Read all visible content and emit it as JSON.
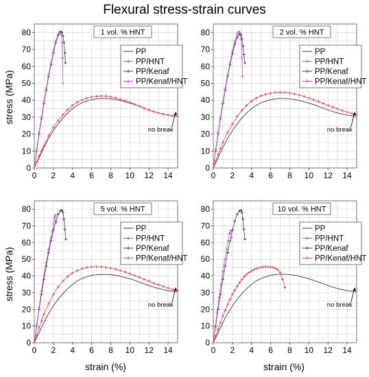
{
  "figure_title": "Flexural stress-strain curves",
  "axis_titles": {
    "y": "stress (MPa)",
    "x": "strain (%)"
  },
  "colors": {
    "PP": "#3a3a3a",
    "PP/HNT": "#e8424a",
    "PP/Kenaf": "#3a3a3a",
    "PP/Kenaf/HNT": "#c24fd2"
  },
  "chart_data": [
    {
      "type": "line",
      "panel_label": "1 vol. % HNT",
      "annotation": "no break",
      "xlim": [
        0,
        15
      ],
      "ylim": [
        0,
        85
      ],
      "x_ticks": [
        0,
        2,
        4,
        6,
        8,
        10,
        12,
        14
      ],
      "y_ticks": [
        0,
        10,
        20,
        30,
        40,
        50,
        60,
        70,
        80
      ],
      "grid": true,
      "legend_position": "right",
      "series": [
        {
          "name": "PP",
          "marker": "none",
          "x": [
            0,
            0.25,
            0.5,
            0.75,
            1,
            1.5,
            2,
            2.5,
            3,
            3.5,
            4,
            4.5,
            5,
            5.5,
            6,
            6.5,
            7,
            7.5,
            8,
            8.5,
            9,
            9.5,
            10,
            10.5,
            11,
            11.5,
            12,
            12.5,
            13,
            13.5,
            14,
            14.5,
            15
          ],
          "y": [
            0,
            3,
            6,
            9,
            12,
            17.5,
            22,
            26,
            29.5,
            32.5,
            35,
            37,
            38.5,
            39.5,
            40.3,
            40.8,
            41,
            41,
            40.8,
            40.4,
            39.8,
            39.1,
            38.3,
            37.4,
            36.4,
            35.3,
            34.2,
            33.3,
            32.5,
            31.8,
            31.2,
            30.8,
            30.5
          ]
        },
        {
          "name": "PP/HNT",
          "marker": "plus",
          "x": [
            0,
            0.25,
            0.5,
            0.75,
            1,
            1.5,
            2,
            2.5,
            3,
            3.5,
            4,
            4.5,
            5,
            5.5,
            6,
            6.5,
            7,
            7.5,
            8,
            8.5,
            9,
            9.5,
            10,
            10.5,
            11,
            11.5,
            12,
            12.5,
            13,
            13.5,
            14,
            14.5,
            15
          ],
          "y": [
            0,
            3.5,
            7,
            10,
            13,
            19,
            24,
            28,
            31.5,
            34.5,
            37,
            38.8,
            40.2,
            41.2,
            41.9,
            42.3,
            42.5,
            42.4,
            42,
            41.4,
            40.6,
            39.7,
            38.7,
            37.6,
            36.5,
            35.3,
            34.2,
            33.3,
            32.5,
            31.8,
            31.2,
            30.8,
            30.5
          ]
        },
        {
          "name": "PP/Kenaf",
          "marker": "plus",
          "x": [
            0,
            0.25,
            0.5,
            0.75,
            1,
            1.25,
            1.5,
            1.75,
            2,
            2.25,
            2.5,
            2.75,
            2.9,
            3.0,
            3.1,
            3.2,
            3.25
          ],
          "y": [
            0,
            10,
            20,
            29,
            38,
            46,
            54,
            61,
            68,
            74,
            78.5,
            80.5,
            80,
            78,
            74,
            68,
            62
          ]
        },
        {
          "name": "PP/Kenaf/HNT",
          "marker": "plus",
          "x": [
            0,
            0.25,
            0.5,
            0.75,
            1,
            1.25,
            1.5,
            1.75,
            2,
            2.25,
            2.5,
            2.65,
            2.8,
            2.9,
            2.95,
            3.0
          ],
          "y": [
            0,
            11,
            21,
            30,
            39,
            47,
            55,
            62,
            69,
            75,
            79,
            80.5,
            79,
            74,
            65,
            50
          ]
        }
      ]
    },
    {
      "type": "line",
      "panel_label": "2 vol. % HNT",
      "annotation": "no break",
      "xlim": [
        0,
        15
      ],
      "ylim": [
        0,
        85
      ],
      "x_ticks": [
        0,
        2,
        4,
        6,
        8,
        10,
        12,
        14
      ],
      "y_ticks": [
        0,
        10,
        20,
        30,
        40,
        50,
        60,
        70,
        80
      ],
      "grid": true,
      "legend_position": "right",
      "series": [
        {
          "name": "PP",
          "marker": "none",
          "x": [
            0,
            0.25,
            0.5,
            0.75,
            1,
            1.5,
            2,
            2.5,
            3,
            3.5,
            4,
            4.5,
            5,
            5.5,
            6,
            6.5,
            7,
            7.5,
            8,
            8.5,
            9,
            9.5,
            10,
            10.5,
            11,
            11.5,
            12,
            12.5,
            13,
            13.5,
            14,
            14.5,
            15
          ],
          "y": [
            0,
            3,
            6,
            9,
            12,
            17.5,
            22,
            26,
            29.5,
            32.5,
            35,
            37,
            38.5,
            39.5,
            40.3,
            40.8,
            41,
            41,
            40.8,
            40.4,
            39.8,
            39.1,
            38.3,
            37.4,
            36.4,
            35.3,
            34.2,
            33.3,
            32.5,
            31.8,
            31.2,
            30.8,
            30.5
          ]
        },
        {
          "name": "PP/HNT",
          "marker": "plus",
          "x": [
            0,
            0.25,
            0.5,
            0.75,
            1,
            1.5,
            2,
            2.5,
            3,
            3.5,
            4,
            4.5,
            5,
            5.5,
            6,
            6.5,
            7,
            7.5,
            8,
            8.5,
            9,
            9.5,
            10,
            10.5,
            11,
            11.5,
            12,
            12.5,
            13,
            13.5,
            14,
            14.5,
            15
          ],
          "y": [
            0,
            4,
            8,
            11.5,
            15,
            21,
            26,
            30.5,
            34,
            37,
            39.5,
            41.3,
            42.6,
            43.5,
            44.1,
            44.5,
            44.6,
            44.5,
            44.2,
            43.7,
            43,
            42.2,
            41.3,
            40.3,
            39.2,
            38.1,
            37,
            35.9,
            34.9,
            33.9,
            33,
            32.2,
            31.5
          ]
        },
        {
          "name": "PP/Kenaf",
          "marker": "plus",
          "x": [
            0,
            0.25,
            0.5,
            0.75,
            1,
            1.25,
            1.5,
            1.75,
            2,
            2.25,
            2.5,
            2.75,
            2.9,
            3.0,
            3.1,
            3.2,
            3.3
          ],
          "y": [
            0,
            10,
            20,
            29,
            38,
            46,
            54,
            61,
            67.5,
            73,
            77,
            79,
            78.5,
            76,
            72,
            67,
            62
          ]
        },
        {
          "name": "PP/Kenaf/HNT",
          "marker": "plus",
          "x": [
            0,
            0.25,
            0.5,
            0.75,
            1,
            1.25,
            1.5,
            1.75,
            2,
            2.25,
            2.5,
            2.65,
            2.8,
            2.9,
            3.0,
            3.05
          ],
          "y": [
            0,
            11,
            21,
            30,
            39,
            47,
            55,
            62,
            69,
            75,
            79,
            80.5,
            79.5,
            76,
            65,
            54
          ]
        }
      ]
    },
    {
      "type": "line",
      "panel_label": "5 vol. % HNT",
      "annotation": "no break",
      "xlim": [
        0,
        15
      ],
      "ylim": [
        0,
        85
      ],
      "x_ticks": [
        0,
        2,
        4,
        6,
        8,
        10,
        12,
        14
      ],
      "y_ticks": [
        0,
        10,
        20,
        30,
        40,
        50,
        60,
        70,
        80
      ],
      "grid": true,
      "legend_position": "right",
      "series": [
        {
          "name": "PP",
          "marker": "none",
          "x": [
            0,
            0.25,
            0.5,
            0.75,
            1,
            1.5,
            2,
            2.5,
            3,
            3.5,
            4,
            4.5,
            5,
            5.5,
            6,
            6.5,
            7,
            7.5,
            8,
            8.5,
            9,
            9.5,
            10,
            10.5,
            11,
            11.5,
            12,
            12.5,
            13,
            13.5,
            14,
            14.5,
            15
          ],
          "y": [
            0,
            3,
            6,
            9,
            12,
            17.5,
            22,
            26,
            29.5,
            32.5,
            35,
            37,
            38.5,
            39.5,
            40.3,
            40.8,
            41,
            41,
            40.8,
            40.4,
            39.8,
            39.1,
            38.3,
            37.4,
            36.4,
            35.3,
            34.2,
            33.3,
            32.5,
            31.8,
            31.2,
            30.8,
            30.5
          ]
        },
        {
          "name": "PP/HNT",
          "marker": "plus",
          "x": [
            0,
            0.25,
            0.5,
            0.75,
            1,
            1.5,
            2,
            2.5,
            3,
            3.5,
            4,
            4.5,
            5,
            5.5,
            6,
            6.5,
            7,
            7.5,
            8,
            8.5,
            9,
            9.5,
            10,
            10.5,
            11,
            11.5,
            12,
            12.5,
            13,
            13.5,
            14,
            14.5,
            15
          ],
          "y": [
            0,
            4.5,
            9,
            13,
            17,
            23.5,
            29,
            33.5,
            37,
            39.8,
            41.8,
            43.3,
            44.4,
            45.1,
            45.5,
            45.6,
            45.5,
            45.2,
            44.7,
            44.1,
            43.3,
            42.4,
            41.4,
            40.3,
            39.2,
            38,
            36.8,
            35.7,
            34.7,
            33.7,
            32.8,
            32,
            31.3
          ]
        },
        {
          "name": "PP/Kenaf",
          "marker": "plus",
          "x": [
            0,
            0.25,
            0.5,
            0.75,
            1,
            1.25,
            1.5,
            1.75,
            2,
            2.25,
            2.5,
            2.75,
            2.9,
            3.0,
            3.1,
            3.2,
            3.3
          ],
          "y": [
            0,
            10,
            20,
            29,
            38,
            46,
            54,
            61,
            67.5,
            73,
            77,
            79,
            79.3,
            78,
            74,
            68,
            62
          ]
        },
        {
          "name": "PP/Kenaf/HNT",
          "marker": "plus",
          "x": [
            0,
            0.25,
            0.5,
            0.75,
            1,
            1.25,
            1.5,
            1.75,
            1.9,
            2.0,
            2.1,
            2.2,
            2.3
          ],
          "y": [
            0,
            11,
            21,
            31,
            40,
            48,
            56,
            63,
            67,
            71,
            75,
            76.5,
            72
          ]
        }
      ]
    },
    {
      "type": "line",
      "panel_label": "10 vol. % HNT",
      "annotation": "no break",
      "xlim": [
        0,
        15
      ],
      "ylim": [
        0,
        85
      ],
      "x_ticks": [
        0,
        2,
        4,
        6,
        8,
        10,
        12,
        14
      ],
      "y_ticks": [
        0,
        10,
        20,
        30,
        40,
        50,
        60,
        70,
        80
      ],
      "grid": true,
      "legend_position": "right",
      "series": [
        {
          "name": "PP",
          "marker": "none",
          "x": [
            0,
            0.25,
            0.5,
            0.75,
            1,
            1.5,
            2,
            2.5,
            3,
            3.5,
            4,
            4.5,
            5,
            5.5,
            6,
            6.5,
            7,
            7.5,
            8,
            8.5,
            9,
            9.5,
            10,
            10.5,
            11,
            11.5,
            12,
            12.5,
            13,
            13.5,
            14,
            14.5,
            15
          ],
          "y": [
            0,
            3,
            6,
            9,
            12,
            17.5,
            22,
            26,
            29.5,
            32.5,
            35,
            37,
            38.5,
            39.5,
            40.3,
            40.8,
            41,
            41,
            40.8,
            40.4,
            39.8,
            39.1,
            38.3,
            37.4,
            36.4,
            35.3,
            34.2,
            33.3,
            32.5,
            31.8,
            31.2,
            30.8,
            30.5
          ]
        },
        {
          "name": "PP/HNT",
          "marker": "plus",
          "x": [
            0,
            0.25,
            0.5,
            0.75,
            1,
            1.25,
            1.5,
            1.75,
            2,
            2.25,
            2.5,
            2.75,
            3,
            3.25,
            3.5,
            3.75,
            4,
            4.25,
            4.5,
            4.75,
            5,
            5.25,
            5.5,
            5.75,
            6,
            6.25,
            6.5,
            6.75,
            7,
            7.25,
            7.5
          ],
          "y": [
            0,
            4,
            8,
            12,
            16,
            19.5,
            23,
            26,
            29,
            31.5,
            34,
            36,
            38,
            39.6,
            41,
            42.1,
            43,
            43.8,
            44.4,
            44.9,
            45.2,
            45.4,
            45.5,
            45.5,
            45.4,
            45.1,
            44.6,
            43.8,
            42,
            38,
            33
          ]
        },
        {
          "name": "PP/Kenaf",
          "marker": "plus",
          "x": [
            0,
            0.25,
            0.5,
            0.75,
            1,
            1.25,
            1.5,
            1.75,
            2,
            2.25,
            2.5,
            2.75,
            2.9,
            3.0,
            3.1,
            3.2,
            3.3
          ],
          "y": [
            0,
            10,
            20,
            29,
            38,
            46,
            54,
            61,
            67.5,
            73,
            77,
            79,
            79.3,
            78,
            74,
            68,
            62
          ]
        },
        {
          "name": "PP/Kenaf/HNT",
          "marker": "plus",
          "x": [
            0,
            0.2,
            0.4,
            0.6,
            0.8,
            1.0,
            1.2,
            1.4,
            1.55,
            1.7,
            1.8,
            1.9
          ],
          "y": [
            0,
            9,
            18,
            27,
            35,
            43,
            50,
            56,
            61,
            65.5,
            67,
            63
          ]
        }
      ]
    }
  ]
}
